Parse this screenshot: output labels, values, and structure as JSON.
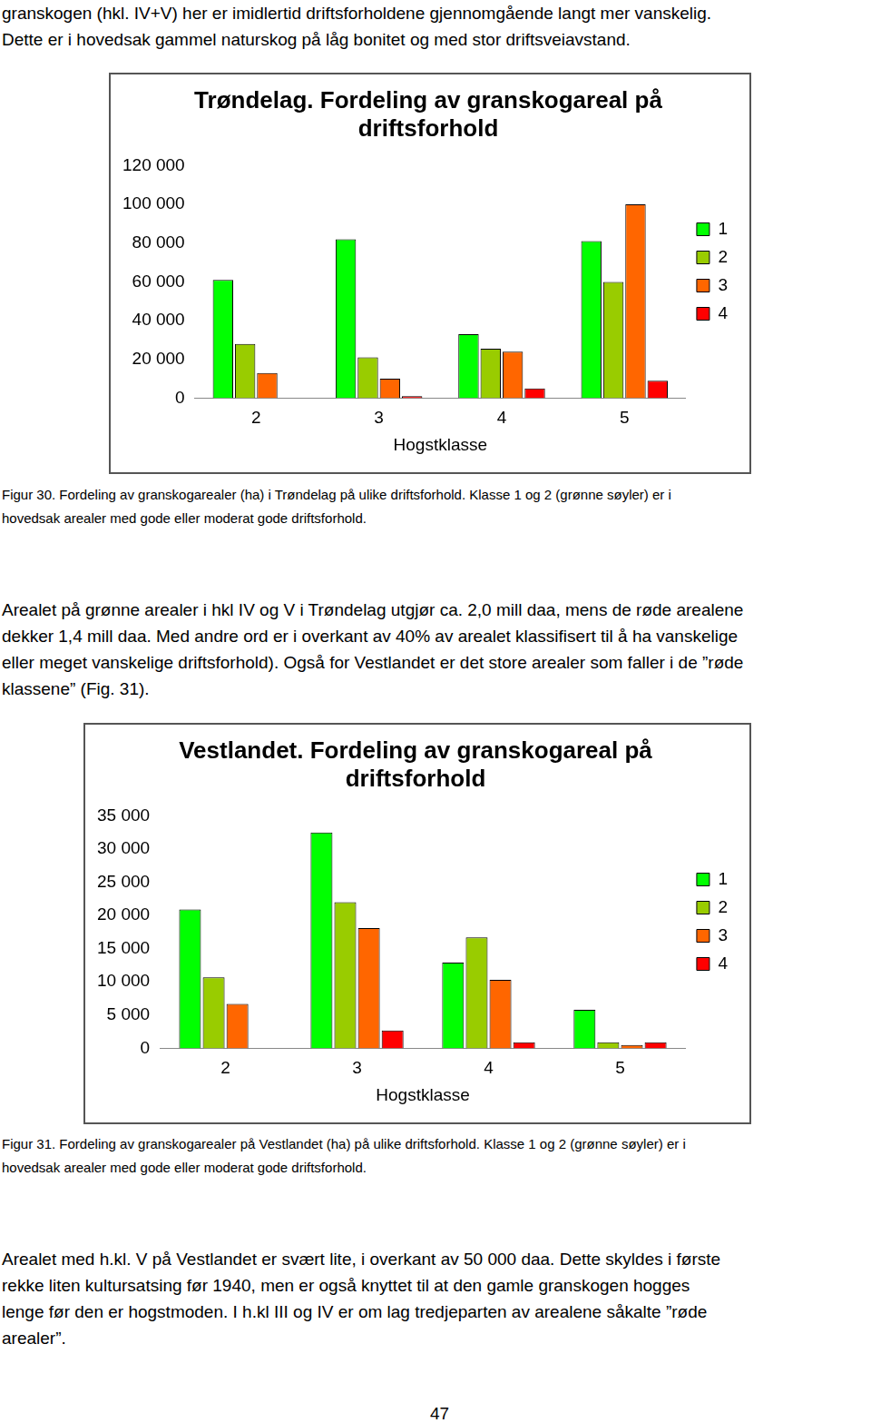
{
  "document": {
    "text_top": [
      "granskogen (hkl. IV+V) her er imidlertid driftsforholdene gjennomgående langt mer vanskelig.",
      "Dette er i hovedsak gammel naturskog på låg bonitet og med stor driftsveiavstand."
    ],
    "fig30_caption": [
      "Figur 30. Fordeling av granskogarealer (ha) i Trøndelag på ulike driftsforhold. Klasse 1 og 2 (grønne søyler) er i",
      "hovedsak arealer med gode eller moderat gode driftsforhold."
    ],
    "text_middle": [
      "Arealet på grønne arealer i hkl IV og V i Trøndelag utgjør ca. 2,0 mill daa, mens de røde arealene",
      "dekker 1,4 mill daa. Med andre ord er i overkant av 40% av arealet klassifisert til å ha vanskelige",
      "eller meget vanskelige driftsforhold). Også for Vestlandet er det store arealer som faller i de ”røde",
      "klassene” (Fig. 31)."
    ],
    "fig31_caption": [
      "Figur 31. Fordeling av granskogarealer på Vestlandet (ha) på ulike driftsforhold. Klasse 1 og 2 (grønne søyler) er i",
      "hovedsak arealer med gode eller moderat gode driftsforhold."
    ],
    "text_bottom": [
      "Arealet med h.kl. V på Vestlandet er svært lite, i overkant av 50 000 daa. Dette skyldes i første",
      "rekke liten kultursatsing før 1940, men er også knyttet til at den gamle granskogen hogges",
      "lenge før den er hogstmoden. I h.kl III og IV er om lag tredjeparten av arealene såkalte ”røde",
      "arealer”."
    ],
    "page_number": "47"
  },
  "chart_data": [
    {
      "type": "bar",
      "title": [
        "Trøndelag. Fordeling av granskogareal på",
        "driftsforhold"
      ],
      "x_label": "Hogstklasse",
      "categories": [
        "2",
        "3",
        "4",
        "5"
      ],
      "series": [
        {
          "name": "1",
          "color": "#00ff00",
          "values": [
            61000,
            82000,
            33000,
            81000
          ]
        },
        {
          "name": "2",
          "color": "#99cc00",
          "values": [
            28000,
            21000,
            25500,
            60000
          ]
        },
        {
          "name": "3",
          "color": "#ff6600",
          "values": [
            13000,
            10000,
            24000,
            100000
          ]
        },
        {
          "name": "4",
          "color": "#ff0000",
          "values": [
            0,
            1000,
            5000,
            9000
          ]
        }
      ],
      "ylim": [
        0,
        120000
      ],
      "yticks": [
        0,
        {
          "value": 20000,
          "label": "20 000"
        },
        {
          "value": 40000,
          "label": "40 000"
        },
        {
          "value": 60000,
          "label": "60 000"
        },
        {
          "value": 80000,
          "label": "80 000"
        },
        {
          "value": 100000,
          "label": "100 000"
        },
        {
          "value": 120000,
          "label": "120 000"
        }
      ],
      "grid": false,
      "legend": "right"
    },
    {
      "type": "bar",
      "title": [
        "Vestlandet. Fordeling av granskogareal på",
        "driftsforhold"
      ],
      "x_label": "Hogstklasse",
      "categories": [
        "2",
        "3",
        "4",
        "5"
      ],
      "series": [
        {
          "name": "1",
          "color": "#00ff00",
          "values": [
            20900,
            32500,
            12900,
            5800
          ]
        },
        {
          "name": "2",
          "color": "#99cc00",
          "values": [
            10700,
            22000,
            16700,
            900
          ]
        },
        {
          "name": "3",
          "color": "#ff6600",
          "values": [
            6700,
            18100,
            10300,
            500
          ]
        },
        {
          "name": "4",
          "color": "#ff0000",
          "values": [
            0,
            2700,
            900,
            900
          ]
        }
      ],
      "ylim": [
        0,
        35000
      ],
      "yticks": [
        0,
        {
          "value": 5000,
          "label": "5 000"
        },
        {
          "value": 10000,
          "label": "10 000"
        },
        {
          "value": 15000,
          "label": "15 000"
        },
        {
          "value": 20000,
          "label": "20 000"
        },
        {
          "value": 25000,
          "label": "25 000"
        },
        {
          "value": 30000,
          "label": "30 000"
        },
        {
          "value": 35000,
          "label": "35 000"
        }
      ],
      "grid": false,
      "legend": "right"
    }
  ]
}
